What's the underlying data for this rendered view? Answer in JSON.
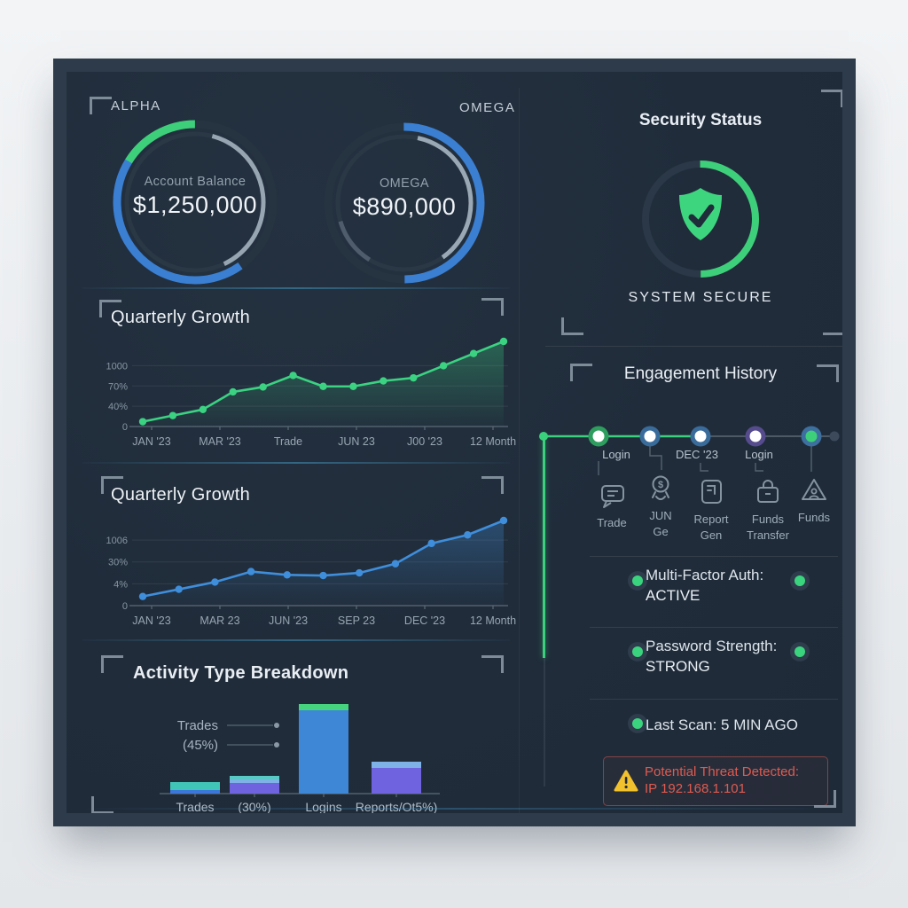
{
  "colors": {
    "panel_bg": "#202c3a",
    "frame": "#2d3b4a",
    "accent_green": "#3ecf7a",
    "accent_blue": "#3a7fd2",
    "accent_purple": "#6f63e0",
    "accent_teal": "#41c4b8",
    "alert_red": "#de5b50",
    "warning_yellow": "#f2c12e",
    "text_primary": "#eef2f6",
    "text_muted": "#93a1ae"
  },
  "gauges": {
    "alpha": {
      "frame_label": "ALPHA",
      "label": "Account Balance",
      "value": "$1,250,000"
    },
    "omega": {
      "frame_label": "OMEGA",
      "label": "OMEGA",
      "value": "$890,000"
    }
  },
  "security_status": {
    "title": "Security Status",
    "status_text": "SYSTEM SECURE"
  },
  "engagement": {
    "title": "Engagement History",
    "node_labels": [
      "Login",
      "DEC '23",
      "Login"
    ],
    "events": [
      {
        "label": "Trade",
        "icon": "chat-icon"
      },
      {
        "label": "JUN Ge",
        "icon": "dollar-icon"
      },
      {
        "label": "Report Gen",
        "icon": "report-icon"
      },
      {
        "label": "Funds Transfer",
        "icon": "wallet-icon"
      },
      {
        "label": "Funds",
        "icon": "funds-icon"
      }
    ]
  },
  "security_checks": [
    {
      "label": "Multi-Factor Auth:",
      "value": "ACTIVE"
    },
    {
      "label": "Password Strength:",
      "value": "STRONG"
    },
    {
      "label": "Last Scan: 5 MIN AGO",
      "value": ""
    }
  ],
  "alert": {
    "line1": "Potential Threat Detected:",
    "line2": "IP 192.168.1.101"
  },
  "chart_data": [
    {
      "type": "line",
      "title": "Quarterly Growth",
      "color": "#3bd282",
      "x_labels": [
        "JAN '23",
        "MAR '23",
        "Trade",
        "JUN 23",
        "J00 '23",
        "12 Month"
      ],
      "y_ticks": [
        "1000",
        "70%",
        "40%",
        "0"
      ],
      "grid_values": [
        100,
        66.7,
        33.3,
        0
      ],
      "ymax": 140,
      "values": [
        8,
        18,
        28,
        57,
        65,
        84,
        66,
        66,
        75,
        80,
        100,
        120,
        140
      ],
      "legend": "none",
      "grid": "horizontal"
    },
    {
      "type": "line",
      "title": "Quarterly Growth",
      "color": "#3f8edb",
      "x_labels": [
        "JAN '23",
        "MAR 23",
        "JUN '23",
        "SEP 23",
        "DEC '23",
        "12 Month"
      ],
      "y_ticks": [
        "1006",
        "30%",
        "4%",
        "0"
      ],
      "grid_values": [
        100,
        66.7,
        33.3,
        0
      ],
      "ymax": 130,
      "values": [
        14,
        25,
        36,
        52,
        47,
        46,
        50,
        64,
        95,
        108,
        130
      ],
      "legend": "none",
      "grid": "horizontal"
    },
    {
      "type": "bar",
      "title": "Activity Type Breakdown",
      "categories": [
        "Trades",
        "(30%)",
        "Logins",
        "Reports/Ot5%)"
      ],
      "annotations": [
        "Trades",
        "(45%)"
      ],
      "bars": [
        {
          "segments": [
            {
              "h": 4,
              "color": "#3b77d8"
            },
            {
              "h": 9,
              "color": "#41c4b8"
            }
          ]
        },
        {
          "segments": [
            {
              "h": 12,
              "color": "#6f63e0"
            },
            {
              "h": 4,
              "color": "#7fb3e8"
            },
            {
              "h": 4,
              "color": "#58c9c4"
            }
          ]
        },
        {
          "segments": [
            {
              "h": 94,
              "color": "#3e87d6"
            },
            {
              "h": 7,
              "color": "#46d47e"
            }
          ]
        },
        {
          "segments": [
            {
              "h": 29,
              "color": "#6f63e0"
            },
            {
              "h": 7,
              "color": "#7fb3e8"
            }
          ]
        }
      ]
    }
  ]
}
